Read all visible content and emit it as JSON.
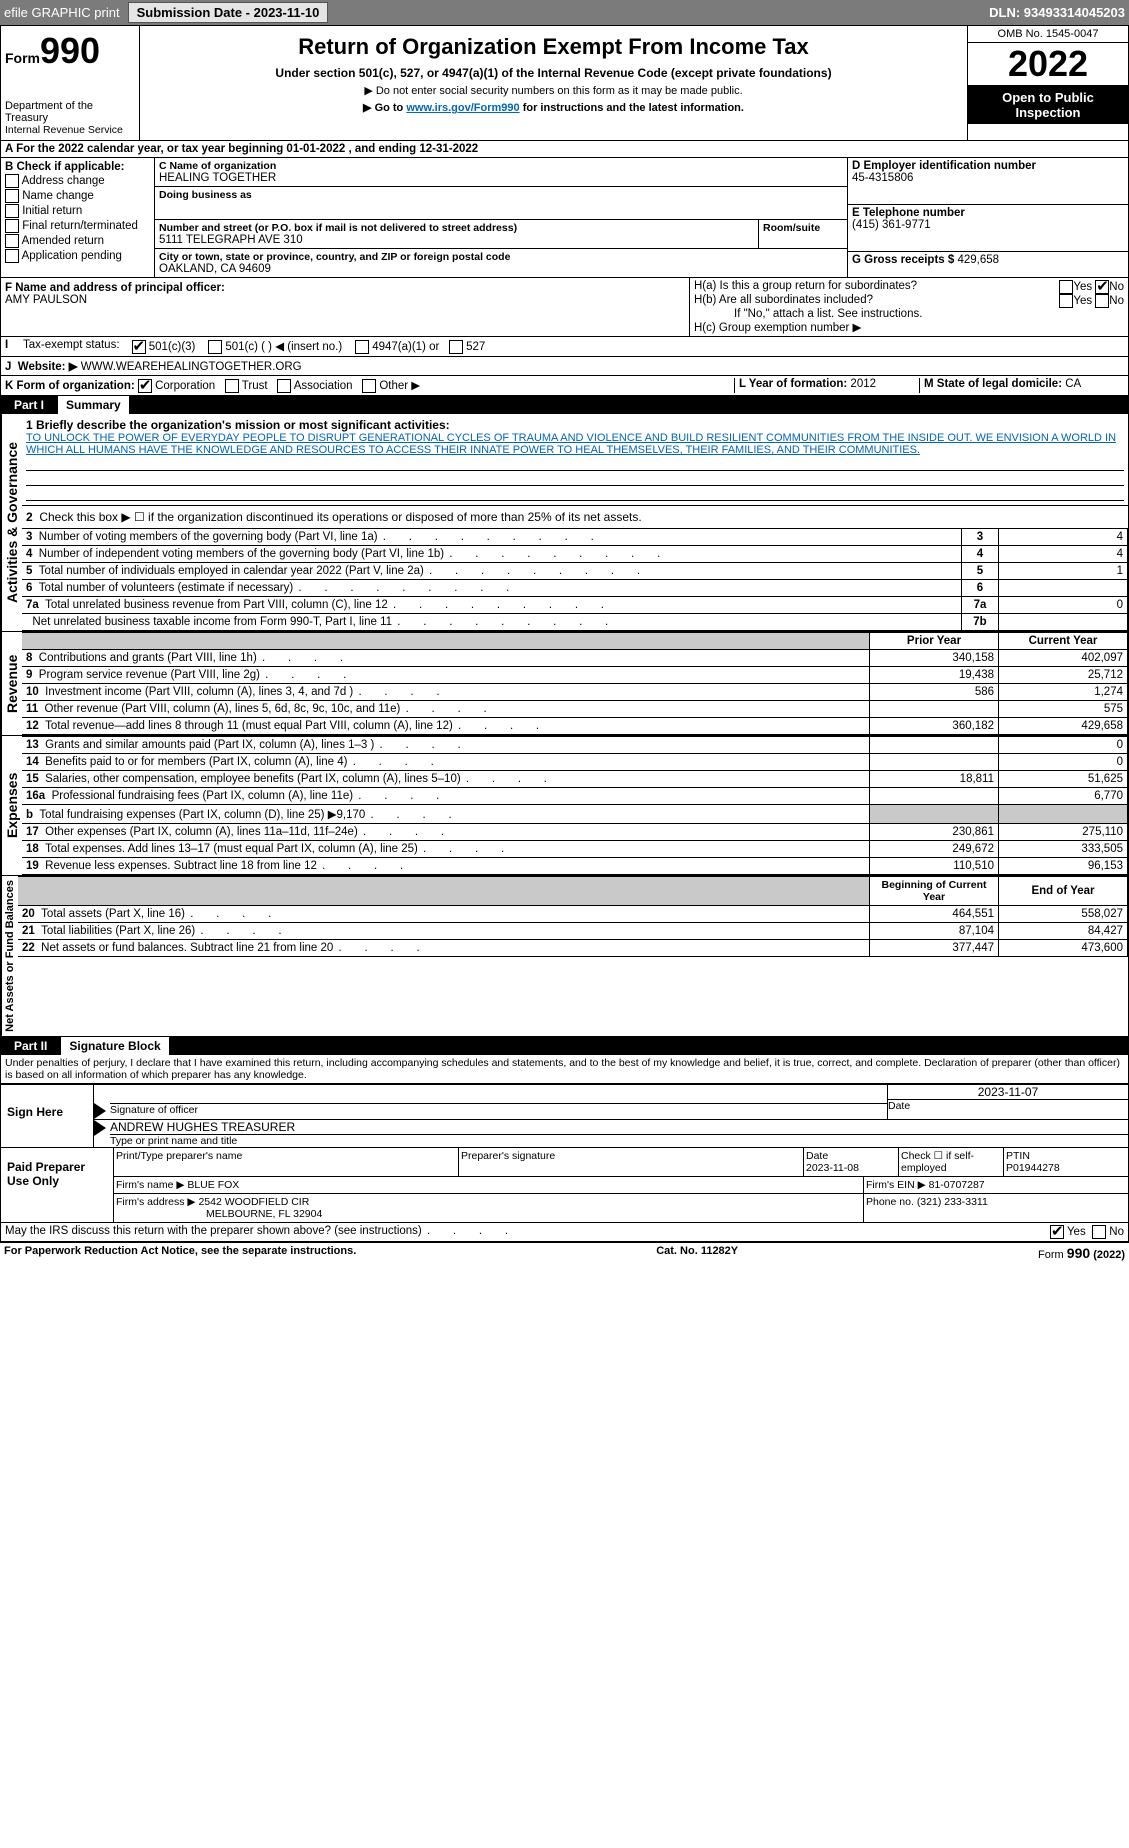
{
  "topbar": {
    "efile": "efile GRAPHIC print",
    "submission_label": "Submission Date - 2023-11-10",
    "dln": "DLN: 93493314045203"
  },
  "header": {
    "form_word": "Form",
    "form_no": "990",
    "dept": "Department of the Treasury",
    "irs": "Internal Revenue Service",
    "title": "Return of Organization Exempt From Income Tax",
    "sub": "Under section 501(c), 527, or 4947(a)(1) of the Internal Revenue Code (except private foundations)",
    "sub2a": "▶ Do not enter social security numbers on this form as it may be made public.",
    "sub2b": "▶ Go to ",
    "sub2b_link": "www.irs.gov/Form990",
    "sub2b_after": " for instructions and the latest information.",
    "omb": "OMB No. 1545-0047",
    "year": "2022",
    "open": "Open to Public Inspection"
  },
  "periodA": "For the 2022 calendar year, or tax year beginning 01-01-2022    , and ending 12-31-2022",
  "checksB_label": "B Check if applicable:",
  "checksB": [
    "Address change",
    "Name change",
    "Initial return",
    "Final return/terminated",
    "Amended return",
    "Application pending"
  ],
  "blockC": {
    "name_label": "C Name of organization",
    "name": "HEALING TOGETHER",
    "dba_label": "Doing business as",
    "street_label": "Number and street (or P.O. box if mail is not delivered to street address)",
    "room_label": "Room/suite",
    "street": "5111 TELEGRAPH AVE 310",
    "city_label": "City or town, state or province, country, and ZIP or foreign postal code",
    "city": "OAKLAND, CA  94609"
  },
  "blockD": {
    "label": "D Employer identification number",
    "value": "45-4315806"
  },
  "blockE": {
    "label": "E Telephone number",
    "value": "(415) 361-9771"
  },
  "blockG": {
    "label": "G Gross receipts $",
    "value": "429,658"
  },
  "blockF": {
    "label": "F  Name and address of principal officer:",
    "value": "AMY PAULSON"
  },
  "blockH": {
    "a": "H(a)  Is this a group return for subordinates?",
    "b": "H(b)  Are all subordinates included?",
    "b_note": "If \"No,\" attach a list. See instructions.",
    "c": "H(c)  Group exemption number ▶",
    "yes": "Yes",
    "no": "No"
  },
  "taxExempt": {
    "label": "Tax-exempt status:",
    "opts": [
      "501(c)(3)",
      "501(c) (  ) ◀ (insert no.)",
      "4947(a)(1) or",
      "527"
    ]
  },
  "blockJ": {
    "label": "Website: ▶",
    "value": "WWW.WEAREHEALINGTOGETHER.ORG"
  },
  "blockK": {
    "label": "K Form of organization:",
    "opts": [
      "Corporation",
      "Trust",
      "Association",
      "Other ▶"
    ]
  },
  "blockL": {
    "label": "L Year of formation:",
    "value": "2012"
  },
  "blockM": {
    "label": "M State of legal domicile:",
    "value": "CA"
  },
  "part1": {
    "label": "Part I",
    "title": "Summary"
  },
  "summary": {
    "mission_label": "1  Briefly describe the organization's mission or most significant activities:",
    "mission": "TO UNLOCK THE POWER OF EVERYDAY PEOPLE TO DISRUPT GENERATIONAL CYCLES OF TRAUMA AND VIOLENCE AND BUILD RESILIENT COMMUNITIES FROM THE INSIDE OUT. WE ENVISION A WORLD IN WHICH ALL HUMANS HAVE THE KNOWLEDGE AND RESOURCES TO ACCESS THEIR INNATE POWER TO HEAL THEMSELVES, THEIR FAMILIES, AND THEIR COMMUNITIES.",
    "line2": "Check this box ▶ ☐  if the organization discontinued its operations or disposed of more than 25% of its net assets.",
    "lines_gov": [
      {
        "no": "3",
        "txt": "Number of voting members of the governing body (Part VI, line 1a)",
        "box": "3",
        "val": "4"
      },
      {
        "no": "4",
        "txt": "Number of independent voting members of the governing body (Part VI, line 1b)",
        "box": "4",
        "val": "4"
      },
      {
        "no": "5",
        "txt": "Total number of individuals employed in calendar year 2022 (Part V, line 2a)",
        "box": "5",
        "val": "1"
      },
      {
        "no": "6",
        "txt": "Total number of volunteers (estimate if necessary)",
        "box": "6",
        "val": ""
      },
      {
        "no": "7a",
        "txt": "Total unrelated business revenue from Part VIII, column (C), line 12",
        "box": "7a",
        "val": "0"
      },
      {
        "no": "",
        "txt": "Net unrelated business taxable income from Form 990-T, Part I, line 11",
        "box": "7b",
        "val": ""
      }
    ],
    "col_hdr_prior": "Prior Year",
    "col_hdr_current": "Current Year",
    "revenue": [
      {
        "no": "8",
        "txt": "Contributions and grants (Part VIII, line 1h)",
        "prior": "340,158",
        "cur": "402,097"
      },
      {
        "no": "9",
        "txt": "Program service revenue (Part VIII, line 2g)",
        "prior": "19,438",
        "cur": "25,712"
      },
      {
        "no": "10",
        "txt": "Investment income (Part VIII, column (A), lines 3, 4, and 7d )",
        "prior": "586",
        "cur": "1,274"
      },
      {
        "no": "11",
        "txt": "Other revenue (Part VIII, column (A), lines 5, 6d, 8c, 9c, 10c, and 11e)",
        "prior": "",
        "cur": "575"
      },
      {
        "no": "12",
        "txt": "Total revenue—add lines 8 through 11 (must equal Part VIII, column (A), line 12)",
        "prior": "360,182",
        "cur": "429,658"
      }
    ],
    "expenses": [
      {
        "no": "13",
        "txt": "Grants and similar amounts paid (Part IX, column (A), lines 1–3 )",
        "prior": "",
        "cur": "0"
      },
      {
        "no": "14",
        "txt": "Benefits paid to or for members (Part IX, column (A), line 4)",
        "prior": "",
        "cur": "0"
      },
      {
        "no": "15",
        "txt": "Salaries, other compensation, employee benefits (Part IX, column (A), lines 5–10)",
        "prior": "18,811",
        "cur": "51,625"
      },
      {
        "no": "16a",
        "txt": "Professional fundraising fees (Part IX, column (A), line 11e)",
        "prior": "",
        "cur": "6,770"
      },
      {
        "no": "b",
        "txt": "Total fundraising expenses (Part IX, column (D), line 25) ▶9,170",
        "prior": "GREY",
        "cur": "GREY"
      },
      {
        "no": "17",
        "txt": "Other expenses (Part IX, column (A), lines 11a–11d, 11f–24e)",
        "prior": "230,861",
        "cur": "275,110"
      },
      {
        "no": "18",
        "txt": "Total expenses. Add lines 13–17 (must equal Part IX, column (A), line 25)",
        "prior": "249,672",
        "cur": "333,505"
      },
      {
        "no": "19",
        "txt": "Revenue less expenses. Subtract line 18 from line 12",
        "prior": "110,510",
        "cur": "96,153"
      }
    ],
    "col_hdr_begin": "Beginning of Current Year",
    "col_hdr_end": "End of Year",
    "netassets": [
      {
        "no": "20",
        "txt": "Total assets (Part X, line 16)",
        "prior": "464,551",
        "cur": "558,027"
      },
      {
        "no": "21",
        "txt": "Total liabilities (Part X, line 26)",
        "prior": "87,104",
        "cur": "84,427"
      },
      {
        "no": "22",
        "txt": "Net assets or fund balances. Subtract line 21 from line 20",
        "prior": "377,447",
        "cur": "473,600"
      }
    ],
    "vlabels": {
      "gov": "Activities & Governance",
      "rev": "Revenue",
      "exp": "Expenses",
      "net": "Net Assets or Fund Balances"
    }
  },
  "part2": {
    "label": "Part II",
    "title": "Signature Block"
  },
  "sig": {
    "decl": "Under penalties of perjury, I declare that I have examined this return, including accompanying schedules and statements, and to the best of my knowledge and belief, it is true, correct, and complete. Declaration of preparer (other than officer) is based on all information of which preparer has any knowledge.",
    "sign_here": "Sign Here",
    "sig_officer": "Signature of officer",
    "date": "Date",
    "sig_date": "2023-11-07",
    "name": "ANDREW HUGHES  TREASURER",
    "name_label": "Type or print name and title",
    "paid": "Paid Preparer Use Only",
    "pp_name_label": "Print/Type preparer's name",
    "pp_sig_label": "Preparer's signature",
    "pp_date_label": "Date",
    "pp_date": "2023-11-08",
    "pp_check": "Check ☐ if self-employed",
    "ptin_label": "PTIN",
    "ptin": "P01944278",
    "firm_name_label": "Firm's name   ▶",
    "firm_name": "BLUE FOX",
    "firm_ein_label": "Firm's EIN ▶",
    "firm_ein": "81-0707287",
    "firm_addr_label": "Firm's address ▶",
    "firm_addr1": "2542 WOODFIELD CIR",
    "firm_addr2": "MELBOURNE, FL  32904",
    "phone_label": "Phone no.",
    "phone": "(321) 233-3311",
    "discuss": "May the IRS discuss this return with the preparer shown above? (see instructions)",
    "yes": "Yes",
    "no": "No"
  },
  "footer": {
    "left": "For Paperwork Reduction Act Notice, see the separate instructions.",
    "mid": "Cat. No. 11282Y",
    "right": "Form 990 (2022)"
  },
  "colors": {
    "topbar_bg": "#7b7b7b",
    "link": "#0066bb",
    "grey": "#c9c9c9"
  }
}
